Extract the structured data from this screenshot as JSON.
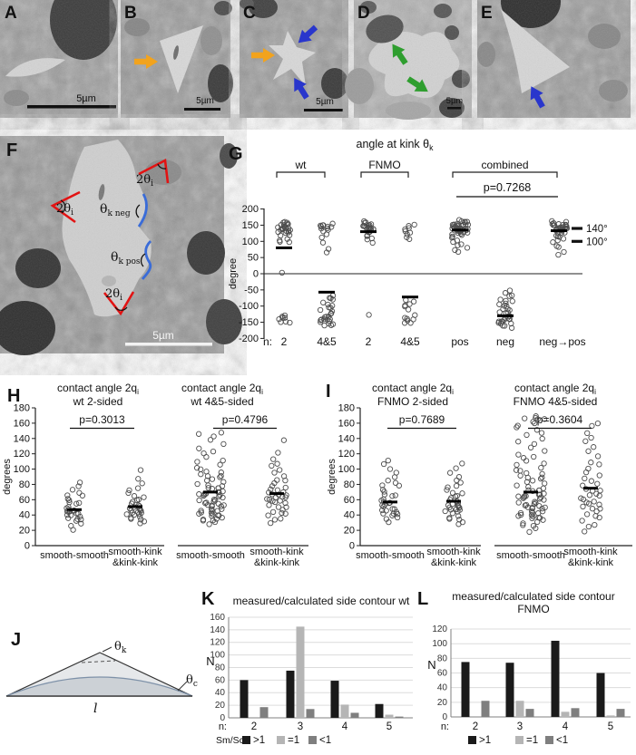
{
  "em_row": {
    "panels": [
      {
        "letter": "A",
        "scalebar": "5µm"
      },
      {
        "letter": "B",
        "scalebar": "5µm"
      },
      {
        "letter": "C",
        "scalebar": "5µm"
      },
      {
        "letter": "D",
        "scalebar": "5µm"
      },
      {
        "letter": "E",
        "scalebar": ""
      }
    ]
  },
  "panel_f": {
    "letter": "F",
    "scalebar": "5µm",
    "labels": {
      "two_theta": "2θ",
      "two_theta_sub": "i",
      "theta_k_neg_main": "θ",
      "theta_k_neg_sub": "k neg",
      "theta_k_pos_main": "θ",
      "theta_k_pos_sub": "k pos"
    }
  },
  "panel_j": {
    "letter": "J",
    "labels": {
      "theta_k_main": "θ",
      "theta_k_sub": "k",
      "theta_c_main": "θ",
      "theta_c_sub": "c",
      "length": "l"
    }
  },
  "colors": {
    "arrow_orange": "#f2a31d",
    "arrow_blue": "#2936cc",
    "arrow_green": "#2f9e2f",
    "annotation_red": "#e21313",
    "annotation_blue": "#3a6cd8",
    "bar_black": "#1a1a1a",
    "bar_light": "#b5b5b5",
    "bar_dark": "#7f7f7f"
  },
  "chart_data": [
    {
      "id": "G",
      "type": "scatter",
      "panel_letter": "G",
      "title_main": "angle at kink θ",
      "title_sub": "k",
      "ylabel": "degree",
      "ylim": [
        -200,
        200
      ],
      "yticks": [
        200,
        150,
        100,
        50,
        0,
        -50,
        -100,
        -150,
        -200
      ],
      "brackets": [
        {
          "label": "wt",
          "from": 0,
          "to": 1
        },
        {
          "label": "FNMO",
          "from": 2,
          "to": 3
        },
        {
          "label": "combined",
          "from": 4,
          "to": 6
        }
      ],
      "p_annotation": {
        "label": "p=0.7268",
        "from": 4,
        "to": 6
      },
      "ref_lines": [
        {
          "value": 140,
          "label": "140°"
        },
        {
          "value": 100,
          "label": "100°"
        }
      ],
      "n_prefix": "n:",
      "columns": [
        {
          "label": "2",
          "medians": [
            80
          ],
          "points": [
            160,
            157,
            155,
            153,
            151,
            150,
            148,
            147,
            146,
            145,
            144,
            143,
            142,
            141,
            140,
            139,
            138,
            136,
            134,
            132,
            130,
            127,
            124,
            120,
            115,
            110,
            105,
            100,
            97,
            2,
            -128,
            -132,
            -136,
            -139,
            -142,
            -145,
            -148,
            -152
          ]
        },
        {
          "label": "4&5",
          "medians": [
            -57
          ],
          "points": [
            156,
            153,
            150,
            148,
            146,
            144,
            142,
            140,
            137,
            133,
            128,
            120,
            110,
            97,
            80,
            64,
            -68,
            -73,
            -78,
            -83,
            -88,
            -93,
            -98,
            -103,
            -108,
            -113,
            -118,
            -123,
            -127,
            -130,
            -133,
            -136,
            -139,
            -141,
            -143,
            -145,
            -147,
            -149,
            -151,
            -153,
            -155,
            -157,
            -160
          ]
        },
        {
          "label": "2",
          "medians": [
            130
          ],
          "points": [
            160,
            157,
            154,
            152,
            150,
            148,
            147,
            146,
            145,
            144,
            143,
            142,
            141,
            140,
            139,
            138,
            137,
            135,
            133,
            131,
            129,
            126,
            122,
            117,
            112,
            106,
            98,
            -125
          ]
        },
        {
          "label": "4&5",
          "medians": [
            -72
          ],
          "points": [
            152,
            147,
            143,
            138,
            133,
            128,
            122,
            115,
            107,
            -84,
            -89,
            -94,
            -99,
            -104,
            -110,
            -128,
            -133,
            -138,
            -142,
            -146,
            -150,
            -154
          ]
        },
        {
          "label": "pos",
          "medians": [
            135
          ],
          "points": [
            166,
            163,
            161,
            159,
            157,
            156,
            155,
            154,
            153,
            152,
            151,
            150,
            149,
            148,
            147,
            146,
            145,
            144,
            143,
            142,
            141,
            140,
            139,
            138,
            137,
            136,
            135,
            134,
            133,
            132,
            131,
            130,
            128,
            126,
            124,
            121,
            118,
            114,
            110,
            105,
            100,
            94,
            88,
            82,
            75,
            67
          ]
        },
        {
          "label": "neg",
          "medians": [
            -130
          ],
          "points": [
            -54,
            -60,
            -66,
            -72,
            -77,
            -82,
            -86,
            -90,
            -94,
            -98,
            -102,
            -106,
            -110,
            -114,
            -118,
            -122,
            -125,
            -128,
            -131,
            -134,
            -137,
            -139,
            -141,
            -143,
            -145,
            -147,
            -149,
            -151,
            -153,
            -155,
            -158,
            -161,
            -165
          ]
        },
        {
          "label": "neg→pos",
          "medians": [
            133
          ],
          "points": [
            161,
            159,
            157,
            155,
            153,
            152,
            151,
            150,
            149,
            148,
            147,
            146,
            145,
            144,
            143,
            142,
            141,
            140,
            139,
            138,
            137,
            136,
            135,
            133,
            131,
            129,
            127,
            124,
            121,
            117,
            112,
            107,
            101,
            95,
            88,
            80,
            70,
            58
          ]
        }
      ]
    },
    {
      "id": "H",
      "type": "scatter",
      "panel_letter": "H",
      "ylabel": "degrees",
      "ylim": [
        0,
        180
      ],
      "yticks": [
        0,
        20,
        40,
        60,
        80,
        100,
        120,
        140,
        160,
        180
      ],
      "subplots": [
        {
          "title_main": "contact angle 2q",
          "title_sub": "i",
          "subtitle": "wt 2-sided",
          "p_label": "p=0.3013",
          "columns": [
            {
              "label1": "smooth-smooth",
              "label2": "",
              "medians": [
                47
              ],
              "points": [
                22,
                25,
                28,
                31,
                33,
                35,
                37,
                38,
                39,
                40,
                41,
                42,
                43,
                44,
                45,
                46,
                47,
                48,
                50,
                52,
                54,
                56,
                58,
                60,
                62,
                64,
                67,
                70,
                74,
                78,
                82
              ]
            },
            {
              "label1": "smooth-kink",
              "label2": "&kink-kink",
              "medians": [
                51
              ],
              "points": [
                28,
                31,
                33,
                35,
                37,
                38,
                39,
                40,
                41,
                42,
                43,
                44,
                45,
                46,
                47,
                48,
                49,
                50,
                51,
                52,
                53,
                55,
                57,
                59,
                61,
                63,
                66,
                69,
                72,
                76,
                81,
                88,
                99
              ]
            }
          ]
        },
        {
          "title_main": "contact angle 2q",
          "title_sub": "i",
          "subtitle": "wt 4&5-sided",
          "p_label": "p=0.4796",
          "columns": [
            {
              "label1": "smooth-smooth",
              "label2": "",
              "medians": [
                70
              ],
              "points": [
                28,
                30,
                32,
                34,
                35,
                36,
                37,
                38,
                39,
                40,
                41,
                42,
                43,
                44,
                45,
                46,
                47,
                48,
                49,
                50,
                51,
                52,
                53,
                54,
                55,
                56,
                57,
                58,
                59,
                60,
                61,
                62,
                63,
                64,
                65,
                66,
                67,
                68,
                69,
                70,
                71,
                72,
                73,
                74,
                75,
                76,
                77,
                78,
                80,
                82,
                84,
                86,
                88,
                90,
                92,
                94,
                96,
                98,
                100,
                103,
                106,
                109,
                112,
                116,
                120,
                124,
                128,
                133,
                138,
                142,
                146,
                148
              ]
            },
            {
              "label1": "smooth-kink",
              "label2": "&kink-kink",
              "medians": [
                68
              ],
              "points": [
                30,
                33,
                36,
                39,
                41,
                43,
                45,
                47,
                49,
                51,
                53,
                55,
                57,
                59,
                60,
                61,
                62,
                63,
                64,
                65,
                66,
                67,
                68,
                69,
                70,
                72,
                74,
                76,
                78,
                81,
                84,
                87,
                90,
                94,
                98,
                103,
                108,
                114,
                120,
                138
              ]
            }
          ]
        }
      ]
    },
    {
      "id": "I",
      "type": "scatter",
      "panel_letter": "I",
      "ylabel": "degrees",
      "ylim": [
        0,
        180
      ],
      "yticks": [
        0,
        20,
        40,
        60,
        80,
        100,
        120,
        140,
        160,
        180
      ],
      "subplots": [
        {
          "title_main": "contact angle 2q",
          "title_sub": "i",
          "subtitle": "FNMO 2-sided",
          "p_label": "p=0.7689",
          "columns": [
            {
              "label1": "smooth-smooth",
              "label2": "",
              "medians": [
                57
              ],
              "points": [
                32,
                34,
                36,
                38,
                40,
                42,
                43,
                44,
                45,
                46,
                47,
                48,
                50,
                52,
                54,
                56,
                57,
                58,
                60,
                62,
                64,
                66,
                68,
                71,
                74,
                77,
                80,
                83,
                86,
                90,
                95,
                100,
                106,
                112
              ]
            },
            {
              "label1": "smooth-kink",
              "label2": "&kink-kink",
              "medians": [
                58
              ],
              "points": [
                27,
                30,
                33,
                35,
                37,
                39,
                41,
                43,
                45,
                46,
                47,
                48,
                49,
                50,
                51,
                52,
                53,
                54,
                55,
                56,
                58,
                60,
                62,
                64,
                66,
                68,
                70,
                73,
                76,
                79,
                82,
                86,
                90,
                95,
                101,
                108
              ]
            }
          ]
        },
        {
          "title_main": "contact angle 2q",
          "title_sub": "i",
          "subtitle": "FNMO 4&5-sided",
          "p_label": "p=0.3604",
          "columns": [
            {
              "label1": "smooth-smooth",
              "label2": "",
              "medians": [
                70
              ],
              "points": [
                18,
                22,
                25,
                28,
                30,
                32,
                34,
                35,
                36,
                37,
                38,
                39,
                40,
                41,
                42,
                43,
                44,
                45,
                46,
                47,
                48,
                49,
                50,
                51,
                52,
                53,
                54,
                55,
                56,
                57,
                58,
                59,
                60,
                61,
                62,
                63,
                64,
                65,
                66,
                67,
                68,
                69,
                70,
                71,
                72,
                73,
                74,
                76,
                78,
                80,
                82,
                84,
                86,
                88,
                90,
                92,
                94,
                96,
                98,
                100,
                102,
                105,
                108,
                111,
                114,
                117,
                120,
                124,
                128,
                132,
                136,
                140,
                144,
                148,
                152,
                155,
                158,
                160,
                162,
                164,
                166,
                168,
                170,
                165
              ]
            },
            {
              "label1": "smooth-kink",
              "label2": "&kink-kink",
              "medians": [
                75
              ],
              "points": [
                19,
                24,
                28,
                32,
                36,
                39,
                42,
                45,
                47,
                49,
                51,
                53,
                55,
                57,
                59,
                61,
                63,
                65,
                67,
                69,
                71,
                73,
                75,
                78,
                81,
                84,
                88,
                92,
                96,
                100,
                105,
                110,
                116,
                122,
                128,
                135,
                142,
                148,
                155,
                160
              ]
            }
          ]
        }
      ]
    },
    {
      "id": "K",
      "type": "bar",
      "panel_letter": "K",
      "title": "measured/calculated side contour  wt",
      "title2": "",
      "ylabel": "N",
      "ylim": [
        0,
        160
      ],
      "yticks": [
        0,
        20,
        40,
        60,
        80,
        100,
        120,
        140,
        160
      ],
      "n_prefix": "n:",
      "categories": [
        "2",
        "3",
        "4",
        "5"
      ],
      "legend_prefix": "Sm/Sc",
      "series": [
        {
          "name": ">1",
          "color": "#1a1a1a",
          "values": [
            60,
            75,
            59,
            22
          ]
        },
        {
          "name": "=1",
          "color": "#b5b5b5",
          "values": [
            0,
            145,
            21,
            5
          ]
        },
        {
          "name": "<1",
          "color": "#7f7f7f",
          "values": [
            17,
            14,
            8,
            2
          ]
        }
      ]
    },
    {
      "id": "L",
      "type": "bar",
      "panel_letter": "L",
      "title": "measured/calculated side contour",
      "title2": "FNMO",
      "ylabel": "N",
      "ylim": [
        0,
        120
      ],
      "yticks": [
        0,
        20,
        40,
        60,
        80,
        100,
        120
      ],
      "n_prefix": "n:",
      "categories": [
        "2",
        "3",
        "4",
        "5"
      ],
      "legend_prefix": "",
      "series": [
        {
          "name": ">1",
          "color": "#1a1a1a",
          "values": [
            75,
            74,
            104,
            60
          ]
        },
        {
          "name": "=1",
          "color": "#b5b5b5",
          "values": [
            0,
            22,
            7,
            2
          ]
        },
        {
          "name": "<1",
          "color": "#7f7f7f",
          "values": [
            22,
            11,
            12,
            11
          ]
        }
      ]
    }
  ]
}
